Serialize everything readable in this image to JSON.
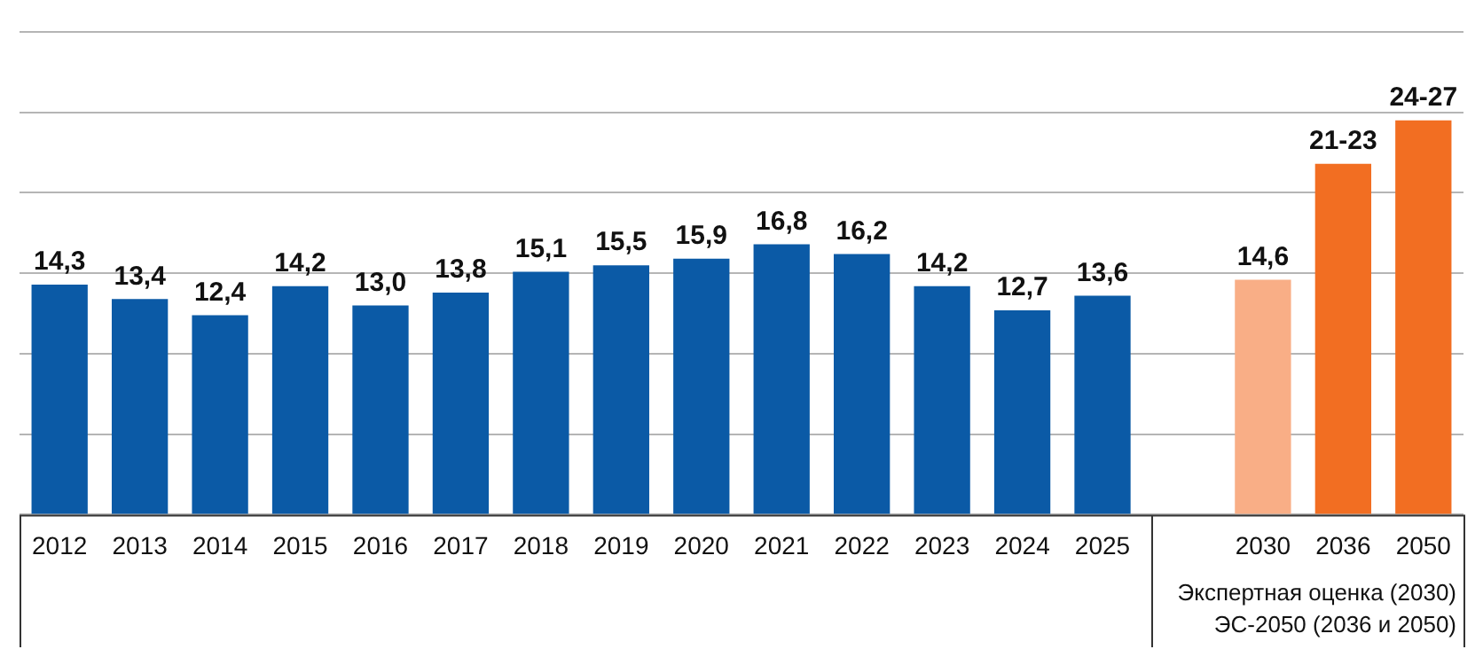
{
  "chart_data": {
    "type": "bar",
    "categories": [
      "2012",
      "2013",
      "2014",
      "2015",
      "2016",
      "2017",
      "2018",
      "2019",
      "2020",
      "2021",
      "2022",
      "2023",
      "2024",
      "2025",
      null,
      "2030",
      "2036",
      "2050"
    ],
    "values": [
      14.3,
      13.4,
      12.4,
      14.2,
      13.0,
      13.8,
      15.1,
      15.5,
      15.9,
      16.8,
      16.2,
      14.2,
      12.7,
      13.6,
      null,
      14.6,
      21.8,
      24.5
    ],
    "value_labels": [
      "14,3",
      "13,4",
      "12,4",
      "14,2",
      "13,0",
      "13,8",
      "15,1",
      "15,5",
      "15,9",
      "16,8",
      "16,2",
      "14,2",
      "12,7",
      "13,6",
      null,
      "14,6",
      "21-23",
      "24-27"
    ],
    "colors": [
      "#0b5aa6",
      "#0b5aa6",
      "#0b5aa6",
      "#0b5aa6",
      "#0b5aa6",
      "#0b5aa6",
      "#0b5aa6",
      "#0b5aa6",
      "#0b5aa6",
      "#0b5aa6",
      "#0b5aa6",
      "#0b5aa6",
      "#0b5aa6",
      "#0b5aa6",
      "#0b5aa6",
      "#f9ae86",
      "#f26e22",
      "#f26e22"
    ],
    "ylim": [
      0,
      30
    ],
    "yticks": [
      {
        "value": 0,
        "label": null
      },
      {
        "value": 5,
        "label": null
      },
      {
        "value": 10,
        "label": null
      },
      {
        "value": 15,
        "label": null
      },
      {
        "value": 20,
        "label": null
      },
      {
        "value": 25,
        "label": null
      },
      {
        "value": 30,
        "label": null
      }
    ],
    "grid": "y",
    "legend": false,
    "annotations": [
      "Экспертная оценка (2030)",
      "ЭС-2050 (2036 и 2050)"
    ]
  }
}
